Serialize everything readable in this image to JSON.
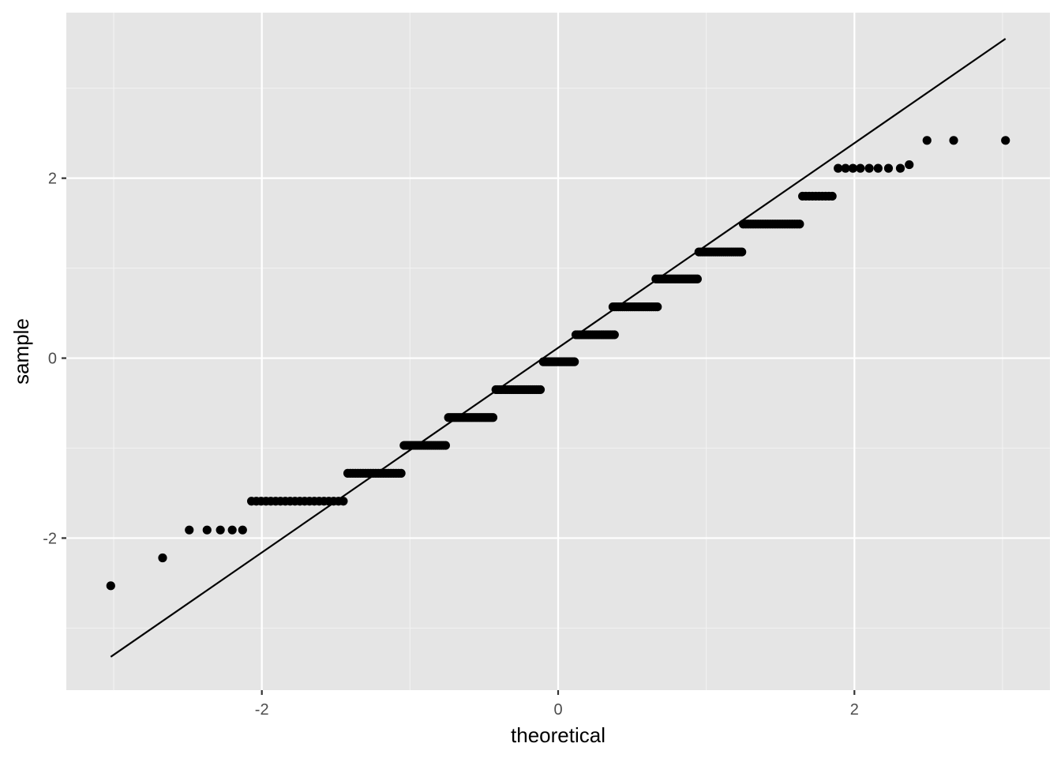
{
  "chart_data": {
    "type": "scatter",
    "title": "",
    "xlabel": "theoretical",
    "ylabel": "sample",
    "xlim": [
      -3.32,
      3.32
    ],
    "ylim": [
      -3.69,
      3.84
    ],
    "grid": true,
    "legend": "none",
    "x_ticks": [
      {
        "value": -2,
        "label": "-2"
      },
      {
        "value": 0,
        "label": "0"
      },
      {
        "value": 2,
        "label": "2"
      }
    ],
    "y_ticks": [
      {
        "value": -2,
        "label": "-2"
      },
      {
        "value": 0,
        "label": "0"
      },
      {
        "value": 2,
        "label": "2"
      }
    ],
    "x_minor_grid": [
      -3,
      -1,
      1,
      3
    ],
    "y_minor_grid": [
      -3,
      -1,
      1,
      3
    ],
    "reference_line": {
      "x": [
        -3.02,
        3.02
      ],
      "y": [
        -3.32,
        3.55
      ]
    },
    "point_groups": [
      {
        "sample": -2.53,
        "x": [
          -3.02
        ]
      },
      {
        "sample": -2.22,
        "x": [
          -2.67
        ]
      },
      {
        "sample": -1.91,
        "x": [
          -2.49,
          -2.37,
          -2.28,
          -2.2,
          -2.13
        ]
      },
      {
        "sample": -1.59,
        "x_from": -2.07,
        "x_to": -1.45,
        "n": 20
      },
      {
        "sample": -1.28,
        "x_from": -1.42,
        "x_to": -1.06,
        "n": 22
      },
      {
        "sample": -0.97,
        "x_from": -1.04,
        "x_to": -0.76,
        "n": 22
      },
      {
        "sample": -0.66,
        "x_from": -0.74,
        "x_to": -0.44,
        "n": 24
      },
      {
        "sample": -0.35,
        "x_from": -0.42,
        "x_to": -0.12,
        "n": 24
      },
      {
        "sample": -0.04,
        "x_from": -0.1,
        "x_to": 0.11,
        "n": 20
      },
      {
        "sample": 0.26,
        "x_from": 0.12,
        "x_to": 0.38,
        "n": 22
      },
      {
        "sample": 0.57,
        "x_from": 0.37,
        "x_to": 0.67,
        "n": 24
      },
      {
        "sample": 0.88,
        "x_from": 0.66,
        "x_to": 0.94,
        "n": 22
      },
      {
        "sample": 1.18,
        "x_from": 0.95,
        "x_to": 1.24,
        "n": 22
      },
      {
        "sample": 1.49,
        "x_from": 1.25,
        "x_to": 1.63,
        "n": 24
      },
      {
        "sample": 1.8,
        "x_from": 1.65,
        "x_to": 1.85,
        "n": 10
      },
      {
        "sample": 2.11,
        "x": [
          1.89,
          1.94,
          1.99,
          2.04,
          2.1,
          2.16,
          2.23,
          2.31
        ]
      },
      {
        "sample": 2.15,
        "x": [
          2.37
        ]
      },
      {
        "sample": 2.42,
        "x": [
          2.49,
          2.67,
          3.02
        ]
      }
    ]
  }
}
